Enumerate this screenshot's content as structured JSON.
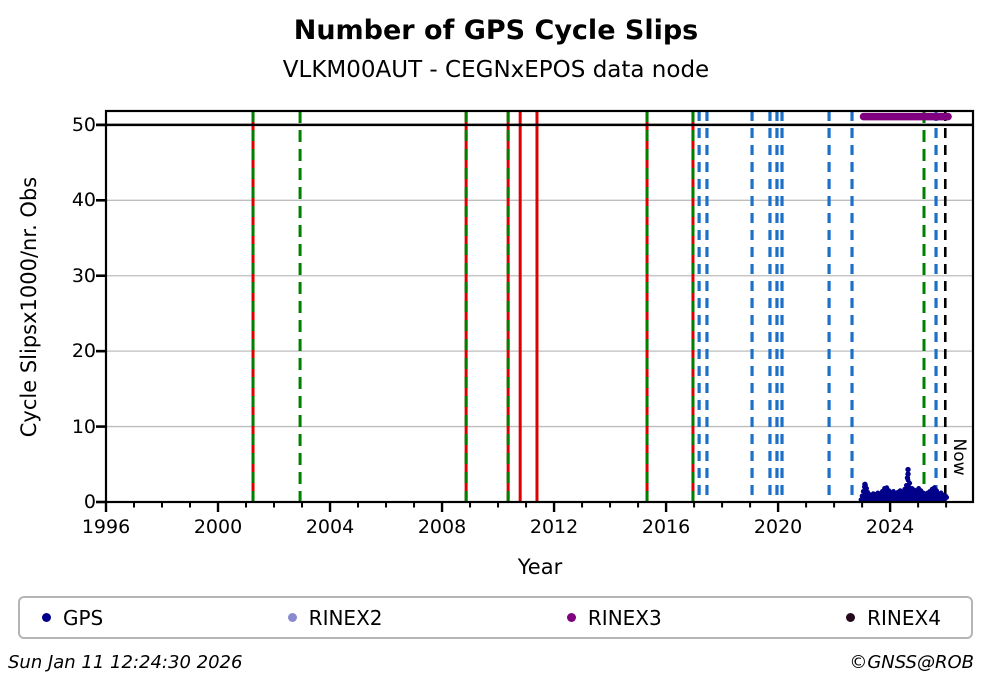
{
  "title": "Number of GPS Cycle Slips",
  "subtitle": "VLKM00AUT - CEGNxEPOS data node",
  "footer": {
    "timestamp": "Sun Jan 11 12:24:30 2026",
    "credit": "©GNSS@ROB"
  },
  "legend": [
    {
      "label": "GPS",
      "color": "#00008b"
    },
    {
      "label": "RINEX2",
      "color": "#8a8ad0"
    },
    {
      "label": "RINEX3",
      "color": "#800080"
    },
    {
      "label": "RINEX4",
      "color": "#24081f"
    }
  ],
  "colors": {
    "green": "#008000",
    "red": "#dd0000",
    "blue": "#1c70c8",
    "black": "#000000",
    "grid": "#bdbdbd",
    "spine": "#000000",
    "gps": "#00008b",
    "rinex3": "#800080"
  },
  "chart_data": {
    "type": "scatter",
    "title": "Number of GPS Cycle Slips",
    "subtitle": "VLKM00AUT - CEGNxEPOS data node",
    "xlabel": "Year",
    "ylabel": "Cycle Slipsx1000/nr. Obs",
    "xlim": [
      1996,
      2026.96
    ],
    "ylim": [
      0,
      51.84
    ],
    "xticks": [
      1996,
      2000,
      2004,
      2008,
      2012,
      2016,
      2020,
      2024
    ],
    "xminor_from": 1997,
    "xminor_to": 2026,
    "yticks": [
      0,
      10,
      20,
      30,
      40,
      50
    ],
    "grid": "horizontal",
    "threshold_line": {
      "y": 50,
      "color": "#000000"
    },
    "now_line": {
      "x": 2025.97,
      "label": "Now",
      "style": "black"
    },
    "vlines": [
      {
        "x": 2001.25,
        "style": "red+green"
      },
      {
        "x": 2002.93,
        "style": "green"
      },
      {
        "x": 2008.86,
        "style": "red+green"
      },
      {
        "x": 2010.36,
        "style": "red+green"
      },
      {
        "x": 2010.79,
        "style": "red"
      },
      {
        "x": 2011.39,
        "style": "red"
      },
      {
        "x": 2015.32,
        "style": "red+green"
      },
      {
        "x": 2016.96,
        "style": "red+green"
      },
      {
        "x": 2017.18,
        "style": "blue"
      },
      {
        "x": 2017.46,
        "style": "blue"
      },
      {
        "x": 2019.07,
        "style": "blue"
      },
      {
        "x": 2019.71,
        "style": "blue"
      },
      {
        "x": 2019.96,
        "style": "blue"
      },
      {
        "x": 2020.14,
        "style": "blue"
      },
      {
        "x": 2021.82,
        "style": "blue"
      },
      {
        "x": 2022.64,
        "style": "blue"
      },
      {
        "x": 2025.21,
        "style": "green"
      },
      {
        "x": 2025.64,
        "style": "blue"
      }
    ],
    "rinex3_segment": {
      "x0": 2023.05,
      "x1": 2026.07,
      "y": 51.1,
      "color": "#800080"
    },
    "gps_series": {
      "name": "GPS",
      "color": "#00008b",
      "points": [
        [
          2022.96,
          0.3
        ],
        [
          2023.0,
          0.8
        ],
        [
          2023.04,
          1.4
        ],
        [
          2023.08,
          2.0
        ],
        [
          2023.12,
          2.2
        ],
        [
          2023.16,
          1.8
        ],
        [
          2023.2,
          1.3
        ],
        [
          2023.26,
          1.0
        ],
        [
          2023.32,
          0.9
        ],
        [
          2023.4,
          1.1
        ],
        [
          2023.48,
          1.0
        ],
        [
          2023.56,
          1.2
        ],
        [
          2023.64,
          1.1
        ],
        [
          2023.72,
          1.4
        ],
        [
          2023.8,
          1.8
        ],
        [
          2023.88,
          1.9
        ],
        [
          2023.96,
          1.5
        ],
        [
          2024.04,
          1.2
        ],
        [
          2024.12,
          1.4
        ],
        [
          2024.2,
          1.1
        ],
        [
          2024.28,
          1.3
        ],
        [
          2024.36,
          1.5
        ],
        [
          2024.44,
          1.3
        ],
        [
          2024.52,
          1.7
        ],
        [
          2024.58,
          2.2
        ],
        [
          2024.64,
          2.9
        ],
        [
          2024.7,
          2.5
        ],
        [
          2024.78,
          1.8
        ],
        [
          2024.86,
          1.6
        ],
        [
          2024.94,
          1.5
        ],
        [
          2025.02,
          1.8
        ],
        [
          2025.1,
          1.5
        ],
        [
          2025.18,
          1.2
        ],
        [
          2025.26,
          1.0
        ],
        [
          2025.34,
          1.2
        ],
        [
          2025.42,
          1.4
        ],
        [
          2025.5,
          1.7
        ],
        [
          2025.58,
          1.9
        ],
        [
          2025.66,
          1.5
        ],
        [
          2025.74,
          1.1
        ],
        [
          2025.82,
          1.2
        ],
        [
          2025.9,
          0.9
        ],
        [
          2025.98,
          0.8
        ],
        [
          2026.02,
          0.6
        ]
      ],
      "outliers": [
        [
          2024.64,
          4.3
        ],
        [
          2024.64,
          3.7
        ],
        [
          2024.62,
          3.2
        ],
        [
          2023.1,
          2.35
        ]
      ]
    }
  }
}
